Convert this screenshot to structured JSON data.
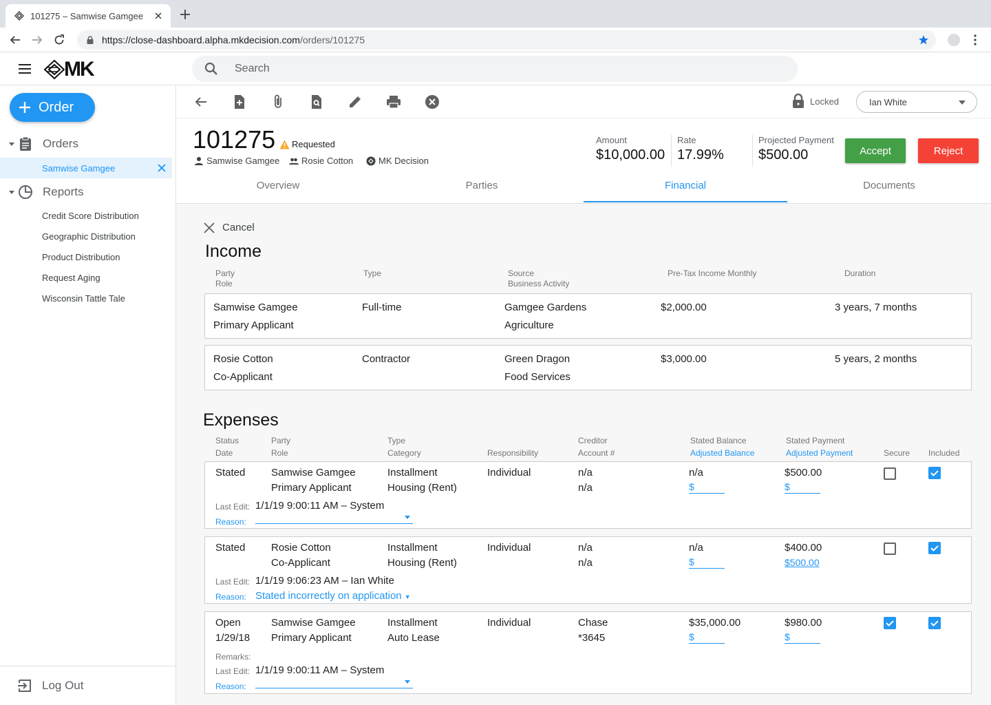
{
  "browser": {
    "tab_title": "101275 – Samwise Gamgee",
    "url_host": "https://close-dashboard.alpha.mkdecision.com",
    "url_path": "/orders/101275"
  },
  "app": {
    "logo_text": "MK",
    "search_placeholder": "Search"
  },
  "sidebar": {
    "order_button": "Order",
    "orders_label": "Orders",
    "selected_order": "Samwise Gamgee",
    "reports_label": "Reports",
    "reports": [
      "Credit Score Distribution",
      "Geographic Distribution",
      "Product Distribution",
      "Request Aging",
      "Wisconsin Tattle Tale"
    ],
    "logout": "Log Out"
  },
  "toolbar": {
    "lock_status": "Locked",
    "assignee": "Ian White"
  },
  "order": {
    "number": "101275",
    "status": "Requested",
    "applicant": "Samwise Gamgee",
    "co_applicant": "Rosie Cotton",
    "lender": "MK Decision",
    "amount_label": "Amount",
    "amount": "$10,000.00",
    "rate_label": "Rate",
    "rate": "17.99%",
    "payment_label": "Projected Payment",
    "payment": "$500.00",
    "accept": "Accept",
    "reject": "Reject",
    "tabs": [
      "Overview",
      "Parties",
      "Financial",
      "Documents"
    ],
    "active_tab": "Financial"
  },
  "financial": {
    "cancel": "Cancel",
    "income_title": "Income",
    "income_headers": {
      "party": "Party",
      "role": "Role",
      "type": "Type",
      "source": "Source",
      "activity": "Business Activity",
      "income": "Pre-Tax Income Monthly",
      "duration": "Duration"
    },
    "income": [
      {
        "party": "Samwise Gamgee",
        "role": "Primary Applicant",
        "type": "Full-time",
        "source": "Gamgee Gardens",
        "activity": "Agriculture",
        "income": "$2,000.00",
        "duration": "3 years, 7 months"
      },
      {
        "party": "Rosie Cotton",
        "role": "Co-Applicant",
        "type": "Contractor",
        "source": "Green Dragon",
        "activity": "Food Services",
        "income": "$3,000.00",
        "duration": "5 years, 2 months"
      }
    ],
    "expenses_title": "Expenses",
    "expense_headers": {
      "status": "Status",
      "date": "Date",
      "party": "Party",
      "role": "Role",
      "type": "Type",
      "category": "Category",
      "responsibility": "Responsibility",
      "creditor": "Creditor",
      "account": "Account #",
      "stated_balance": "Stated Balance",
      "adjusted_balance": "Adjusted Balance",
      "stated_payment": "Stated Payment",
      "adjusted_payment": "Adjusted Payment",
      "secure": "Secure",
      "included": "Included"
    },
    "labels": {
      "last_edit": "Last Edit:",
      "reason": "Reason:",
      "remarks": "Remarks:"
    },
    "expenses": [
      {
        "status": "Stated",
        "date": "",
        "party": "Samwise Gamgee",
        "role": "Primary Applicant",
        "type": "Installment",
        "category": "Housing (Rent)",
        "responsibility": "Individual",
        "creditor": "n/a",
        "account": "n/a",
        "stated_balance": "n/a",
        "adjusted_balance": "$",
        "stated_payment": "$500.00",
        "adjusted_payment": "$",
        "secure": false,
        "included": true,
        "last_edit": "1/1/19 9:00:11 AM – System",
        "reason": ""
      },
      {
        "status": "Stated",
        "date": "",
        "party": "Rosie Cotton",
        "role": "Co-Applicant",
        "type": "Installment",
        "category": "Housing (Rent)",
        "responsibility": "Individual",
        "creditor": "n/a",
        "account": "n/a",
        "stated_balance": "n/a",
        "adjusted_balance": "$",
        "stated_payment": "$400.00",
        "adjusted_payment": "$500.00",
        "secure": false,
        "included": true,
        "last_edit": "1/1/19 9:06:23 AM – Ian White",
        "reason": "Stated incorrectly on application"
      },
      {
        "status": "Open",
        "date": "1/29/18",
        "party": "Samwise Gamgee",
        "role": "Primary Applicant",
        "type": "Installment",
        "category": "Auto Lease",
        "responsibility": "Individual",
        "creditor": "Chase",
        "account": "*3645",
        "stated_balance": "$35,000.00",
        "adjusted_balance": "$",
        "stated_payment": "$980.00",
        "adjusted_payment": "$",
        "secure": true,
        "included": true,
        "last_edit": "1/1/19 9:00:11 AM – System",
        "reason": ""
      }
    ]
  }
}
